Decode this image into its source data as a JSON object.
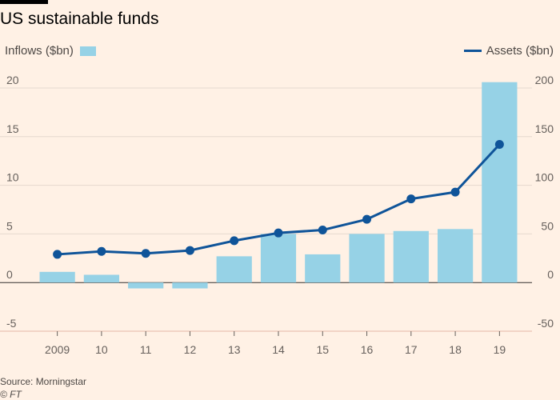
{
  "header": {
    "title": "US sustainable funds"
  },
  "legend": {
    "inflows_label": "Inflows ($bn)",
    "assets_label": "Assets ($bn)"
  },
  "footer": {
    "source": "Source: Morningstar",
    "credit": "© FT"
  },
  "colors": {
    "bar": "#96d2e6",
    "line": "#0f5499",
    "grid": "#e6d9ce",
    "zero": "#33302e",
    "axis": "#e6b8a8"
  },
  "chart_data": {
    "type": "bar+line",
    "title": "US sustainable funds",
    "categories": [
      "2009",
      "10",
      "11",
      "12",
      "13",
      "14",
      "15",
      "16",
      "17",
      "18",
      "19"
    ],
    "series": [
      {
        "name": "Inflows ($bn)",
        "type": "bar",
        "axis": "left",
        "values": [
          1.1,
          0.8,
          -0.6,
          -0.6,
          2.7,
          5.0,
          2.9,
          5.0,
          5.3,
          5.5,
          20.6
        ]
      },
      {
        "name": "Assets ($bn)",
        "type": "line",
        "axis": "right",
        "values": [
          29,
          32,
          30,
          33,
          43,
          51,
          54,
          65,
          86,
          93,
          142
        ]
      }
    ],
    "ylim_left": [
      -5,
      20
    ],
    "yticks_left": [
      -5,
      0,
      5,
      10,
      15,
      20
    ],
    "ylim_right": [
      -50,
      200
    ],
    "yticks_right": [
      -50,
      0,
      50,
      100,
      150,
      200
    ],
    "grid": true,
    "legend_placement": "top"
  }
}
